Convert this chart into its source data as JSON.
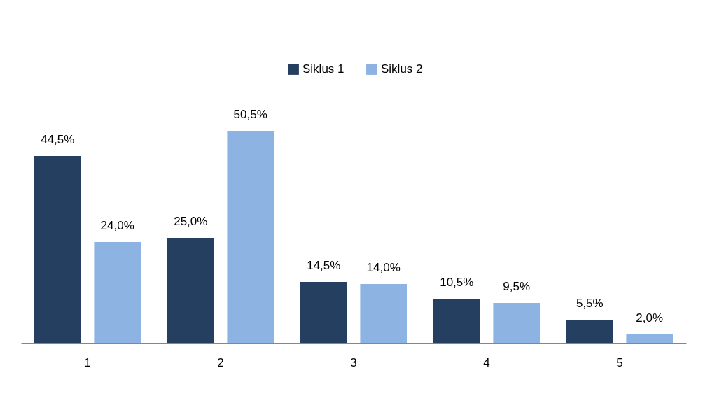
{
  "chart_data": {
    "type": "bar",
    "categories": [
      "1",
      "2",
      "3",
      "4",
      "5"
    ],
    "series": [
      {
        "name": "Siklus 1",
        "color": "#243f60",
        "values": [
          44.5,
          25.0,
          14.5,
          10.5,
          5.5
        ],
        "value_labels": [
          "44,5%",
          "25,0%",
          "14,5%",
          "10,5%",
          "5,5%"
        ]
      },
      {
        "name": "Siklus 2",
        "color": "#8db3e2",
        "values": [
          24.0,
          50.5,
          14.0,
          9.5,
          2.0
        ],
        "value_labels": [
          "24,0%",
          "50,5%",
          "14,0%",
          "9,5%",
          "2,0%"
        ]
      }
    ],
    "legend": "top",
    "grid": false,
    "tick_labels": "x"
  }
}
